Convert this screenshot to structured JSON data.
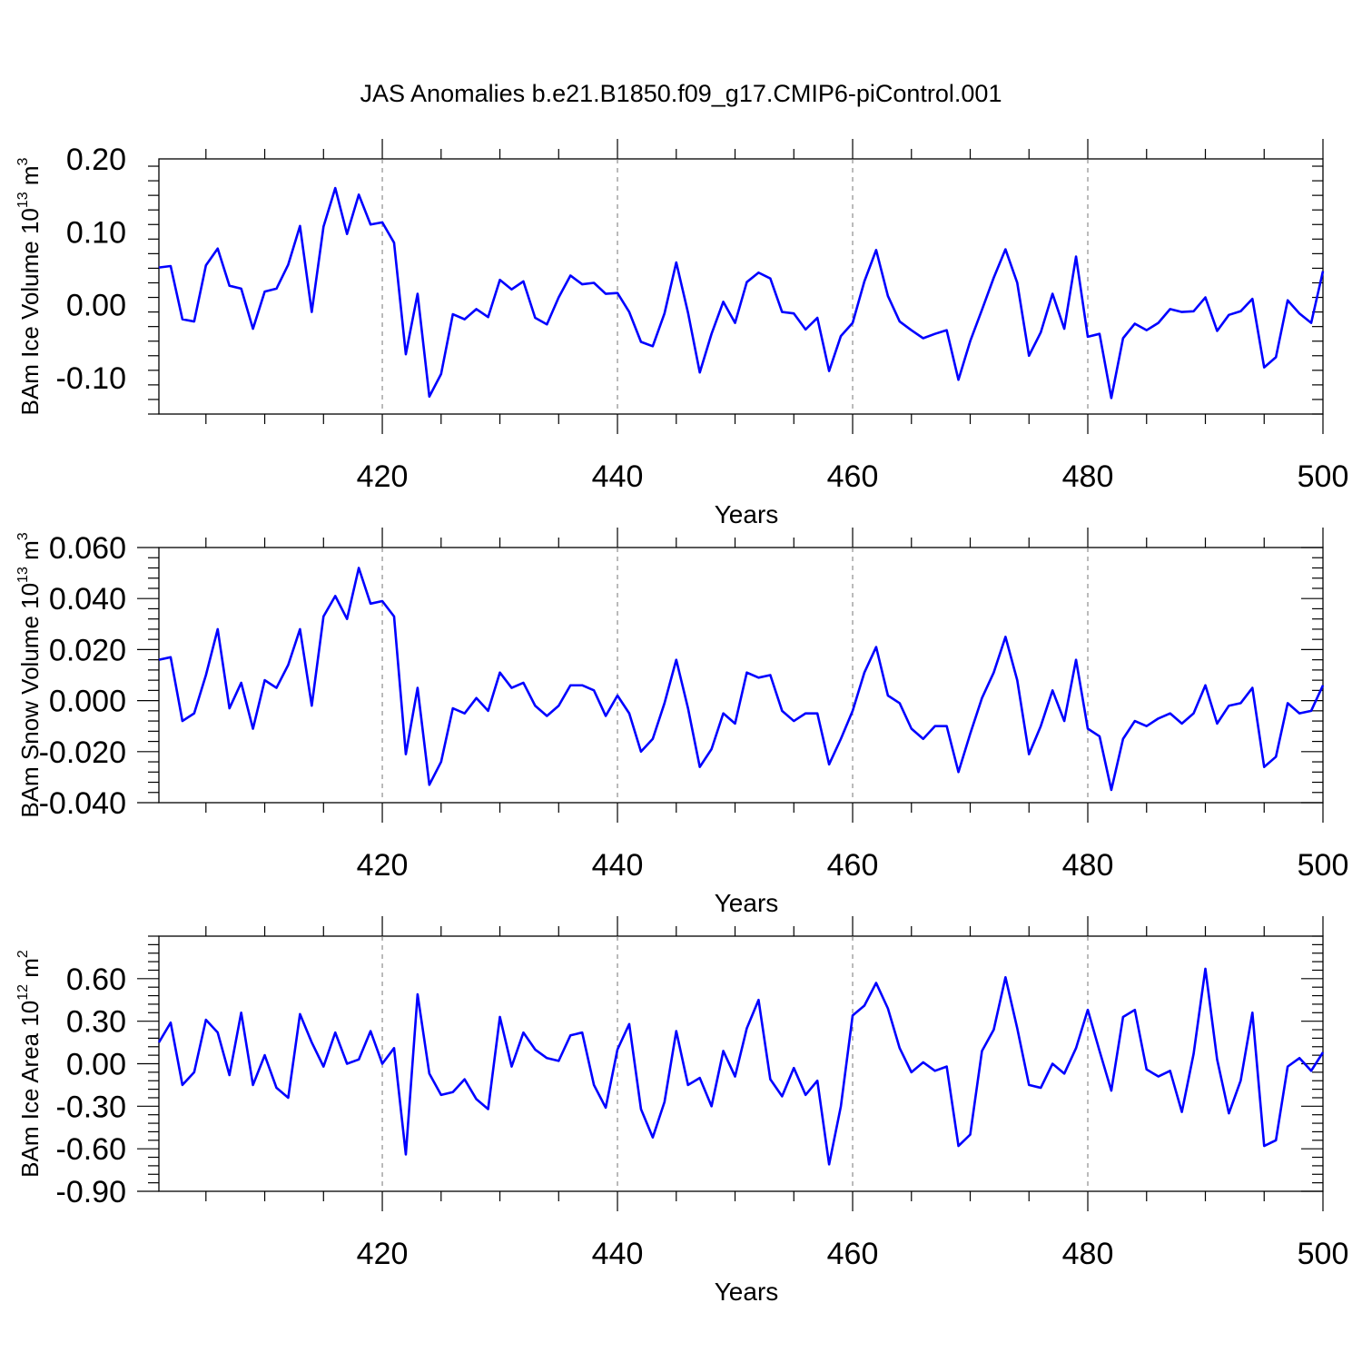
{
  "title": "JAS Anomalies b.e21.B1850.f09_g17.CMIP6-piControl.001",
  "colors": {
    "line": "#0000ff",
    "axis": "#000000",
    "grid": "#777777"
  },
  "chart_data": [
    {
      "type": "line",
      "ylabel_main": "BAm Ice Volume 10",
      "ylabel_sup": "13",
      "ylabel_unit": " m",
      "ylabel_unit_sup": "3",
      "xlabel": "Years",
      "xlim": [
        401,
        500
      ],
      "ylim": [
        -0.15,
        0.2
      ],
      "xticks": [
        420,
        440,
        460,
        480,
        500
      ],
      "xtick_labels": [
        "420",
        "440",
        "460",
        "480",
        "500"
      ],
      "yticks": [
        -0.1,
        0.0,
        0.1,
        0.2
      ],
      "ytick_labels": [
        "-0.10",
        "0.00",
        "0.10",
        "0.20"
      ],
      "grid_x": true,
      "x_start": 401,
      "values": [
        0.051,
        0.053,
        -0.02,
        -0.023,
        0.054,
        0.077,
        0.026,
        0.022,
        -0.033,
        0.018,
        0.022,
        0.055,
        0.108,
        -0.01,
        0.107,
        0.16,
        0.097,
        0.151,
        0.11,
        0.113,
        0.085,
        -0.068,
        0.015,
        -0.126,
        -0.095,
        -0.013,
        -0.02,
        -0.006,
        -0.017,
        0.034,
        0.021,
        0.032,
        -0.018,
        -0.027,
        0.01,
        0.04,
        0.028,
        0.03,
        0.015,
        0.016,
        -0.01,
        -0.051,
        -0.057,
        -0.012,
        0.058,
        -0.011,
        -0.093,
        -0.04,
        0.004,
        -0.025,
        0.031,
        0.044,
        0.036,
        -0.01,
        -0.012,
        -0.034,
        -0.018,
        -0.091,
        -0.043,
        -0.025,
        0.032,
        0.075,
        0.012,
        -0.023,
        -0.035,
        -0.046,
        -0.04,
        -0.035,
        -0.103,
        -0.05,
        -0.007,
        0.037,
        0.076,
        0.03,
        -0.07,
        -0.038,
        0.015,
        -0.033,
        0.066,
        -0.044,
        -0.04,
        -0.128,
        -0.046,
        -0.026,
        -0.035,
        -0.025,
        -0.006,
        -0.01,
        -0.009,
        0.01,
        -0.036,
        -0.014,
        -0.009,
        0.008,
        -0.086,
        -0.072,
        0.006,
        -0.012,
        -0.025,
        0.046
      ]
    },
    {
      "type": "line",
      "ylabel_main": "BAm Snow Volume 10",
      "ylabel_sup": "13",
      "ylabel_unit": " m",
      "ylabel_unit_sup": "3",
      "xlabel": "Years",
      "xlim": [
        401,
        500
      ],
      "ylim": [
        -0.04,
        0.06
      ],
      "xticks": [
        420,
        440,
        460,
        480,
        500
      ],
      "xtick_labels": [
        "420",
        "440",
        "460",
        "480",
        "500"
      ],
      "yticks": [
        -0.04,
        -0.02,
        0.0,
        0.02,
        0.04,
        0.06
      ],
      "ytick_labels": [
        "-0.040",
        "-0.020",
        "0.000",
        "0.020",
        "0.040",
        "0.060"
      ],
      "grid_x": true,
      "x_start": 401,
      "values": [
        0.016,
        0.017,
        -0.008,
        -0.005,
        0.01,
        0.028,
        -0.003,
        0.007,
        -0.011,
        0.008,
        0.005,
        0.014,
        0.028,
        -0.002,
        0.033,
        0.041,
        0.032,
        0.052,
        0.038,
        0.039,
        0.033,
        -0.021,
        0.005,
        -0.033,
        -0.024,
        -0.003,
        -0.005,
        0.001,
        -0.004,
        0.011,
        0.005,
        0.007,
        -0.002,
        -0.006,
        -0.002,
        0.006,
        0.006,
        0.004,
        -0.006,
        0.002,
        -0.005,
        -0.02,
        -0.015,
        -0.001,
        0.016,
        -0.003,
        -0.026,
        -0.019,
        -0.005,
        -0.009,
        0.011,
        0.009,
        0.01,
        -0.004,
        -0.008,
        -0.005,
        -0.005,
        -0.025,
        -0.015,
        -0.004,
        0.011,
        0.021,
        0.002,
        -0.001,
        -0.011,
        -0.015,
        -0.01,
        -0.01,
        -0.028,
        -0.013,
        0.001,
        0.011,
        0.025,
        0.008,
        -0.021,
        -0.01,
        0.004,
        -0.008,
        0.016,
        -0.011,
        -0.014,
        -0.035,
        -0.015,
        -0.008,
        -0.01,
        -0.007,
        -0.005,
        -0.009,
        -0.005,
        0.006,
        -0.009,
        -0.002,
        -0.001,
        0.005,
        -0.026,
        -0.022,
        -0.001,
        -0.005,
        -0.004,
        0.006
      ]
    },
    {
      "type": "line",
      "ylabel_main": "BAm Ice Area 10",
      "ylabel_sup": "12",
      "ylabel_unit": " m",
      "ylabel_unit_sup": "2",
      "xlabel": "Years",
      "xlim": [
        401,
        500
      ],
      "ylim": [
        -0.9,
        0.9
      ],
      "xticks": [
        420,
        440,
        460,
        480,
        500
      ],
      "xtick_labels": [
        "420",
        "440",
        "460",
        "480",
        "500"
      ],
      "yticks": [
        -0.9,
        -0.6,
        -0.3,
        0.0,
        0.3,
        0.6
      ],
      "ytick_labels": [
        "-0.90",
        "-0.60",
        "-0.30",
        "0.00",
        "0.30",
        "0.60"
      ],
      "grid_x": true,
      "x_start": 401,
      "values": [
        0.15,
        0.29,
        -0.15,
        -0.06,
        0.31,
        0.22,
        -0.08,
        0.36,
        -0.15,
        0.06,
        -0.17,
        -0.24,
        0.35,
        0.15,
        -0.02,
        0.22,
        0.0,
        0.03,
        0.23,
        0.0,
        0.11,
        -0.64,
        0.49,
        -0.07,
        -0.22,
        -0.2,
        -0.11,
        -0.25,
        -0.32,
        0.33,
        -0.02,
        0.22,
        0.1,
        0.04,
        0.02,
        0.2,
        0.22,
        -0.15,
        -0.31,
        0.1,
        0.28,
        -0.32,
        -0.52,
        -0.27,
        0.23,
        -0.15,
        -0.1,
        -0.3,
        0.09,
        -0.09,
        0.25,
        0.45,
        -0.11,
        -0.23,
        -0.03,
        -0.22,
        -0.12,
        -0.71,
        -0.3,
        0.34,
        0.41,
        0.57,
        0.39,
        0.11,
        -0.06,
        0.01,
        -0.05,
        -0.02,
        -0.58,
        -0.5,
        0.09,
        0.24,
        0.61,
        0.25,
        -0.15,
        -0.17,
        0.0,
        -0.07,
        0.11,
        0.38,
        0.09,
        -0.19,
        0.33,
        0.38,
        -0.04,
        -0.09,
        -0.05,
        -0.34,
        0.07,
        0.67,
        0.03,
        -0.35,
        -0.12,
        0.36,
        -0.58,
        -0.54,
        -0.02,
        0.04,
        -0.05,
        0.08
      ]
    }
  ]
}
